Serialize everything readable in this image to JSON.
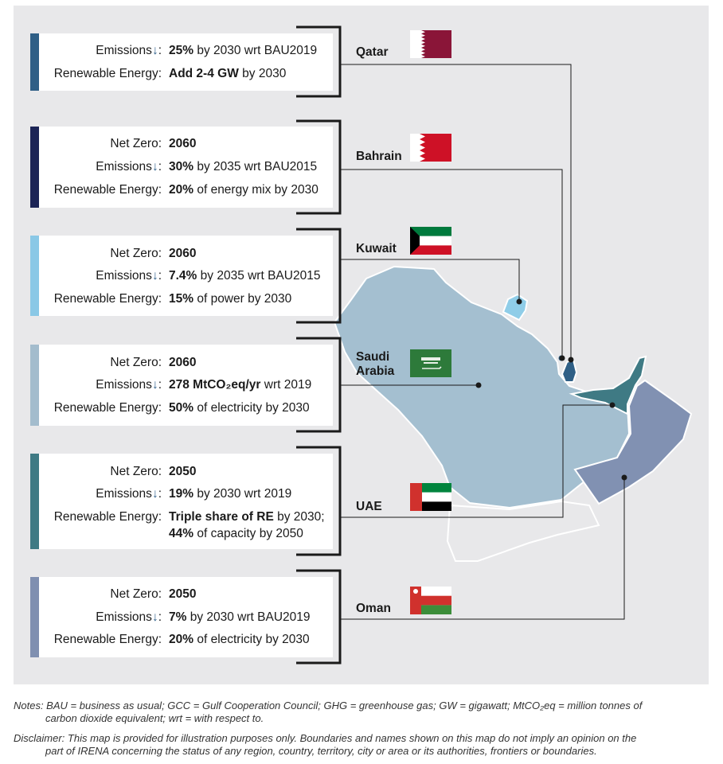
{
  "entries": [
    {
      "country": "Qatar",
      "bar_color": "#2f5f86",
      "rows": [
        {
          "label": "Emissions",
          "arrow": "↓",
          "bold": "25%",
          "rest": " by 2030 wrt BAU2019"
        },
        {
          "label": "Renewable Energy:",
          "bold": "Add 2-4 GW",
          "rest": " by 2030"
        }
      ]
    },
    {
      "country": "Bahrain",
      "bar_color": "#1c2456",
      "rows": [
        {
          "label": "Net Zero:",
          "bold": "2060",
          "rest": ""
        },
        {
          "label": "Emissions",
          "arrow": "↓",
          "bold": "30%",
          "rest": " by 2035 wrt BAU2015"
        },
        {
          "label": "Renewable Energy:",
          "bold": "20%",
          "rest": " of energy mix by 2030"
        }
      ]
    },
    {
      "country": "Kuwait",
      "bar_color": "#8ac8e6",
      "rows": [
        {
          "label": "Net Zero:",
          "bold": "2060",
          "rest": ""
        },
        {
          "label": "Emissions",
          "arrow": "↓",
          "bold": "7.4%",
          "rest": " by 2035 wrt BAU2015"
        },
        {
          "label": "Renewable Energy:",
          "bold": "15%",
          "rest": " of power by 2030"
        }
      ]
    },
    {
      "country": "Saudi Arabia",
      "bar_color": "#a3bccd",
      "rows": [
        {
          "label": "Net Zero:",
          "bold": "2060",
          "rest": ""
        },
        {
          "label": "Emissions",
          "arrow": "↓",
          "bold": "278 MtCO₂eq/yr",
          "rest": " wrt 2019"
        },
        {
          "label": "Renewable Energy:",
          "bold": "50%",
          "rest": " of electricity by 2030"
        }
      ]
    },
    {
      "country": "UAE",
      "bar_color": "#3f7a84",
      "rows": [
        {
          "label": "Net Zero:",
          "bold": "2050",
          "rest": ""
        },
        {
          "label": "Emissions",
          "arrow": "↓",
          "bold": "19%",
          "rest": " by 2030 wrt 2019"
        },
        {
          "label": "Renewable Energy:",
          "bold": "Triple share of RE",
          "rest": " by 2030;"
        },
        {
          "label": "",
          "bold": "44%",
          "rest": " of capacity by 2050"
        }
      ]
    },
    {
      "country": "Oman",
      "bar_color": "#7f8fb0",
      "rows": [
        {
          "label": "Net Zero:",
          "bold": "2050",
          "rest": ""
        },
        {
          "label": "Emissions",
          "arrow": "↓",
          "bold": "7%",
          "rest": " by 2030 wrt BAU2019"
        },
        {
          "label": "Renewable Energy:",
          "bold": "20%",
          "rest": " of electricity by 2030"
        }
      ]
    }
  ],
  "map_colors": {
    "saudi": "#a4bfd0",
    "kuwait": "#8fcde8",
    "qatar_bahrain": "#2f5f86",
    "uae": "#3f7a84",
    "oman": "#8191b2",
    "yemen": "#e8e8ea",
    "connector": "#1a1a1a"
  },
  "notes": {
    "line1": "Notes: BAU = business as usual; GCC = Gulf Cooperation Council; GHG = greenhouse gas; GW = gigawatt; MtCO₂eq = million tonnes of",
    "line1b": "carbon dioxide equivalent; wrt = with respect to.",
    "line2": "Disclaimer: This map is provided for illustration purposes only. Boundaries and names shown on this map do not imply an opinion on the",
    "line2b": "part of IRENA concerning the status of any region, country, territory, city or area or its authorities, frontiers or boundaries."
  }
}
